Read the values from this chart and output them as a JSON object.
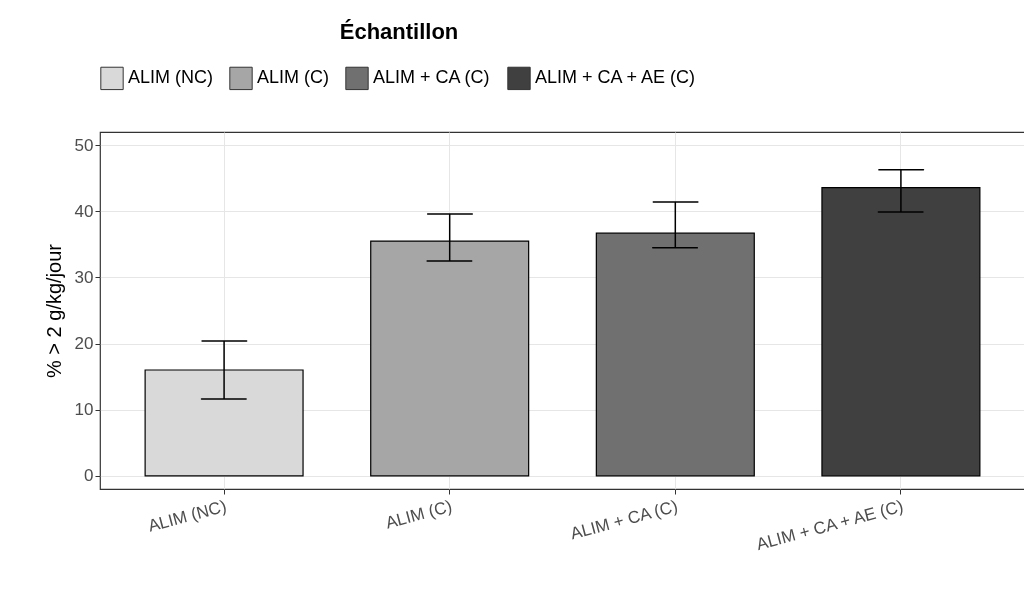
{
  "chart_data": {
    "type": "bar",
    "legend_title": "Échantillon",
    "ylabel": "% > 2 g/kg/jour",
    "categories": [
      "ALIM (NC)",
      "ALIM (C)",
      "ALIM + CA (C)",
      "ALIM + CA + AE (C)"
    ],
    "series": [
      {
        "name": "ALIM (NC)",
        "color": "#d9d9d9",
        "values": [
          16,
          null,
          null,
          null
        ],
        "errors": [
          [
            11.6,
            20.4
          ],
          null,
          null,
          null
        ]
      },
      {
        "name": "ALIM (C)",
        "color": "#a6a6a6",
        "values": [
          null,
          35.5,
          null,
          null
        ],
        "errors": [
          null,
          [
            32.5,
            39.6
          ],
          null,
          null
        ]
      },
      {
        "name": "ALIM + CA (C)",
        "color": "#707070",
        "values": [
          null,
          null,
          36.7,
          null
        ],
        "errors": [
          null,
          null,
          [
            34.5,
            41.4
          ],
          null
        ]
      },
      {
        "name": "ALIM + CA + AE (C)",
        "color": "#404040",
        "values": [
          null,
          null,
          null,
          43.6
        ],
        "errors": [
          null,
          null,
          null,
          [
            39.9,
            46.3
          ]
        ]
      }
    ],
    "ylim": [
      -2,
      52
    ],
    "yticks": [
      0,
      10,
      20,
      30,
      40,
      50
    ],
    "grid": true,
    "legend": "top"
  }
}
